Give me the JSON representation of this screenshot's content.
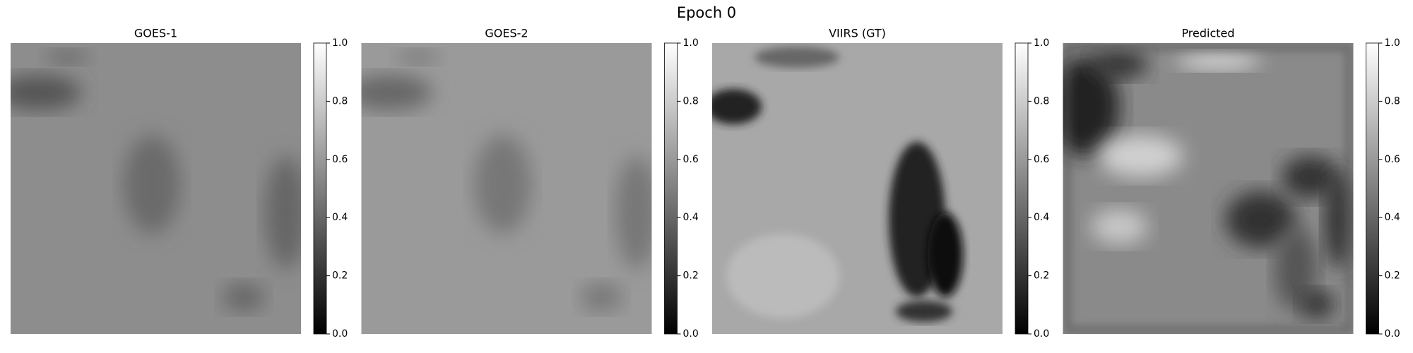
{
  "title": "Epoch 0",
  "panels": [
    {
      "title": "GOES-1",
      "colorbar": {
        "lim": [
          0,
          1
        ],
        "ticks": [
          {
            "value": 0,
            "label": "0.0"
          },
          {
            "value": 0.2,
            "label": "0.2"
          },
          {
            "value": 0.4,
            "label": "0.4"
          },
          {
            "value": 0.6,
            "label": "0.6"
          },
          {
            "value": 0.8,
            "label": "0.8"
          },
          {
            "value": 1,
            "label": "1.0"
          }
        ]
      }
    },
    {
      "title": "GOES-2",
      "colorbar": {
        "lim": [
          0,
          1
        ],
        "ticks": [
          {
            "value": 0,
            "label": "0.0"
          },
          {
            "value": 0.2,
            "label": "0.2"
          },
          {
            "value": 0.4,
            "label": "0.4"
          },
          {
            "value": 0.6,
            "label": "0.6"
          },
          {
            "value": 0.8,
            "label": "0.8"
          },
          {
            "value": 1,
            "label": "1.0"
          }
        ]
      }
    },
    {
      "title": "VIIRS (GT)",
      "colorbar": {
        "lim": [
          0,
          1
        ],
        "ticks": [
          {
            "value": 0,
            "label": "0.0"
          },
          {
            "value": 0.2,
            "label": "0.2"
          },
          {
            "value": 0.4,
            "label": "0.4"
          },
          {
            "value": 0.6,
            "label": "0.6"
          },
          {
            "value": 0.8,
            "label": "0.8"
          },
          {
            "value": 1,
            "label": "1.0"
          }
        ]
      }
    },
    {
      "title": "Predicted",
      "colorbar": {
        "lim": [
          0,
          1
        ],
        "ticks": [
          {
            "value": 0,
            "label": "0.0"
          },
          {
            "value": 0.2,
            "label": "0.2"
          },
          {
            "value": 0.4,
            "label": "0.4"
          },
          {
            "value": 0.6,
            "label": "0.6"
          },
          {
            "value": 0.8,
            "label": "0.8"
          },
          {
            "value": 1,
            "label": "1.0"
          }
        ]
      }
    }
  ]
}
